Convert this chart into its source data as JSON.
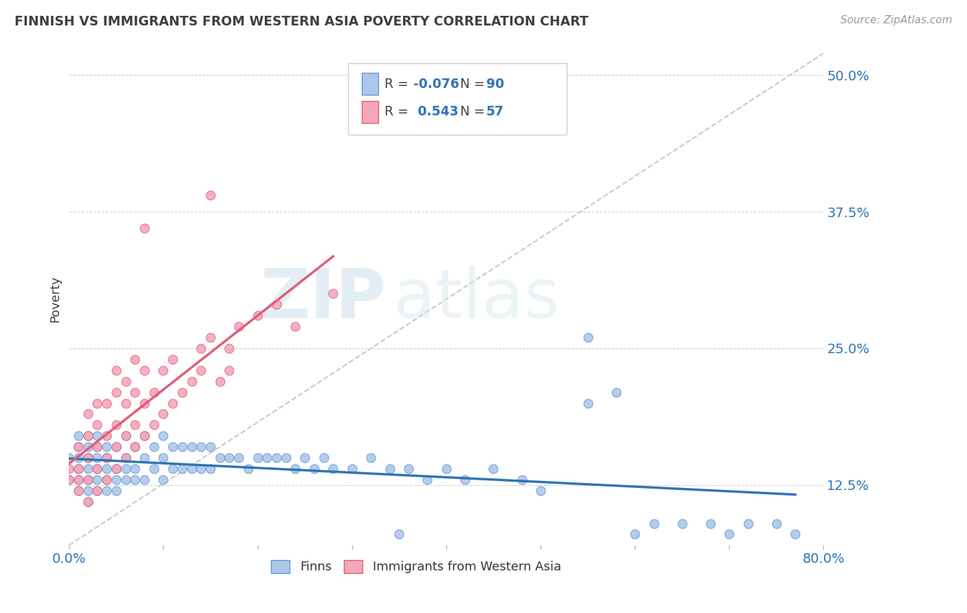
{
  "title": "FINNISH VS IMMIGRANTS FROM WESTERN ASIA POVERTY CORRELATION CHART",
  "source": "Source: ZipAtlas.com",
  "ylabel": "Poverty",
  "xlim": [
    0.0,
    0.8
  ],
  "ylim": [
    0.07,
    0.52
  ],
  "yticks": [
    0.125,
    0.25,
    0.375,
    0.5
  ],
  "ytick_labels": [
    "12.5%",
    "25.0%",
    "37.5%",
    "50.0%"
  ],
  "series": [
    {
      "name": "Finns",
      "color": "#aec6e8",
      "edge_color": "#5b9bd5",
      "R": -0.076,
      "N": 90,
      "trend_color": "#2e75b6",
      "points_x": [
        0.0,
        0.0,
        0.01,
        0.01,
        0.01,
        0.01,
        0.01,
        0.01,
        0.02,
        0.02,
        0.02,
        0.02,
        0.02,
        0.02,
        0.02,
        0.03,
        0.03,
        0.03,
        0.03,
        0.03,
        0.03,
        0.04,
        0.04,
        0.04,
        0.04,
        0.04,
        0.05,
        0.05,
        0.05,
        0.05,
        0.06,
        0.06,
        0.06,
        0.06,
        0.07,
        0.07,
        0.07,
        0.08,
        0.08,
        0.08,
        0.09,
        0.09,
        0.1,
        0.1,
        0.1,
        0.11,
        0.11,
        0.12,
        0.12,
        0.13,
        0.13,
        0.14,
        0.14,
        0.15,
        0.15,
        0.16,
        0.17,
        0.18,
        0.19,
        0.2,
        0.21,
        0.22,
        0.23,
        0.24,
        0.25,
        0.26,
        0.27,
        0.28,
        0.3,
        0.32,
        0.34,
        0.36,
        0.38,
        0.4,
        0.42,
        0.45,
        0.48,
        0.5,
        0.55,
        0.58,
        0.6,
        0.62,
        0.65,
        0.68,
        0.7,
        0.72,
        0.75,
        0.77,
        0.55,
        0.35
      ],
      "points_y": [
        0.13,
        0.15,
        0.12,
        0.13,
        0.14,
        0.15,
        0.16,
        0.17,
        0.11,
        0.12,
        0.13,
        0.14,
        0.15,
        0.16,
        0.17,
        0.12,
        0.13,
        0.14,
        0.15,
        0.16,
        0.17,
        0.12,
        0.13,
        0.14,
        0.15,
        0.16,
        0.12,
        0.13,
        0.14,
        0.16,
        0.13,
        0.14,
        0.15,
        0.17,
        0.13,
        0.14,
        0.16,
        0.13,
        0.15,
        0.17,
        0.14,
        0.16,
        0.13,
        0.15,
        0.17,
        0.14,
        0.16,
        0.14,
        0.16,
        0.14,
        0.16,
        0.14,
        0.16,
        0.14,
        0.16,
        0.15,
        0.15,
        0.15,
        0.14,
        0.15,
        0.15,
        0.15,
        0.15,
        0.14,
        0.15,
        0.14,
        0.15,
        0.14,
        0.14,
        0.15,
        0.14,
        0.14,
        0.13,
        0.14,
        0.13,
        0.14,
        0.13,
        0.12,
        0.2,
        0.21,
        0.08,
        0.09,
        0.09,
        0.09,
        0.08,
        0.09,
        0.09,
        0.08,
        0.26,
        0.08
      ]
    },
    {
      "name": "Immigrants from Western Asia",
      "color": "#f4a7b9",
      "edge_color": "#e05c7a",
      "R": 0.543,
      "N": 57,
      "trend_color": "#e05c7a",
      "points_x": [
        0.0,
        0.0,
        0.01,
        0.01,
        0.01,
        0.01,
        0.02,
        0.02,
        0.02,
        0.02,
        0.02,
        0.03,
        0.03,
        0.03,
        0.03,
        0.03,
        0.04,
        0.04,
        0.04,
        0.04,
        0.05,
        0.05,
        0.05,
        0.05,
        0.05,
        0.06,
        0.06,
        0.06,
        0.06,
        0.07,
        0.07,
        0.07,
        0.07,
        0.08,
        0.08,
        0.08,
        0.09,
        0.09,
        0.1,
        0.1,
        0.11,
        0.11,
        0.12,
        0.13,
        0.14,
        0.14,
        0.15,
        0.16,
        0.17,
        0.17,
        0.18,
        0.2,
        0.22,
        0.24,
        0.28,
        0.15,
        0.08
      ],
      "points_y": [
        0.13,
        0.14,
        0.12,
        0.13,
        0.14,
        0.16,
        0.11,
        0.13,
        0.15,
        0.17,
        0.19,
        0.12,
        0.14,
        0.16,
        0.18,
        0.2,
        0.13,
        0.15,
        0.17,
        0.2,
        0.14,
        0.16,
        0.18,
        0.21,
        0.23,
        0.15,
        0.17,
        0.2,
        0.22,
        0.16,
        0.18,
        0.21,
        0.24,
        0.17,
        0.2,
        0.23,
        0.18,
        0.21,
        0.19,
        0.23,
        0.2,
        0.24,
        0.21,
        0.22,
        0.23,
        0.25,
        0.26,
        0.22,
        0.23,
        0.25,
        0.27,
        0.28,
        0.29,
        0.27,
        0.3,
        0.39,
        0.36
      ]
    }
  ],
  "diagonal_line": {
    "x": [
      0.0,
      0.8
    ],
    "y": [
      0.07,
      0.52
    ],
    "color": "#c8c8c8",
    "linestyle": "--",
    "linewidth": 1.5
  },
  "watermark_zip": "ZIP",
  "watermark_atlas": "atlas",
  "background_color": "#ffffff",
  "grid_color": "#d0d0d0",
  "title_color": "#404040",
  "tick_label_color": "#2e75b6",
  "legend_R_color": "#2e75b6",
  "legend_N_color": "#2e75b6"
}
